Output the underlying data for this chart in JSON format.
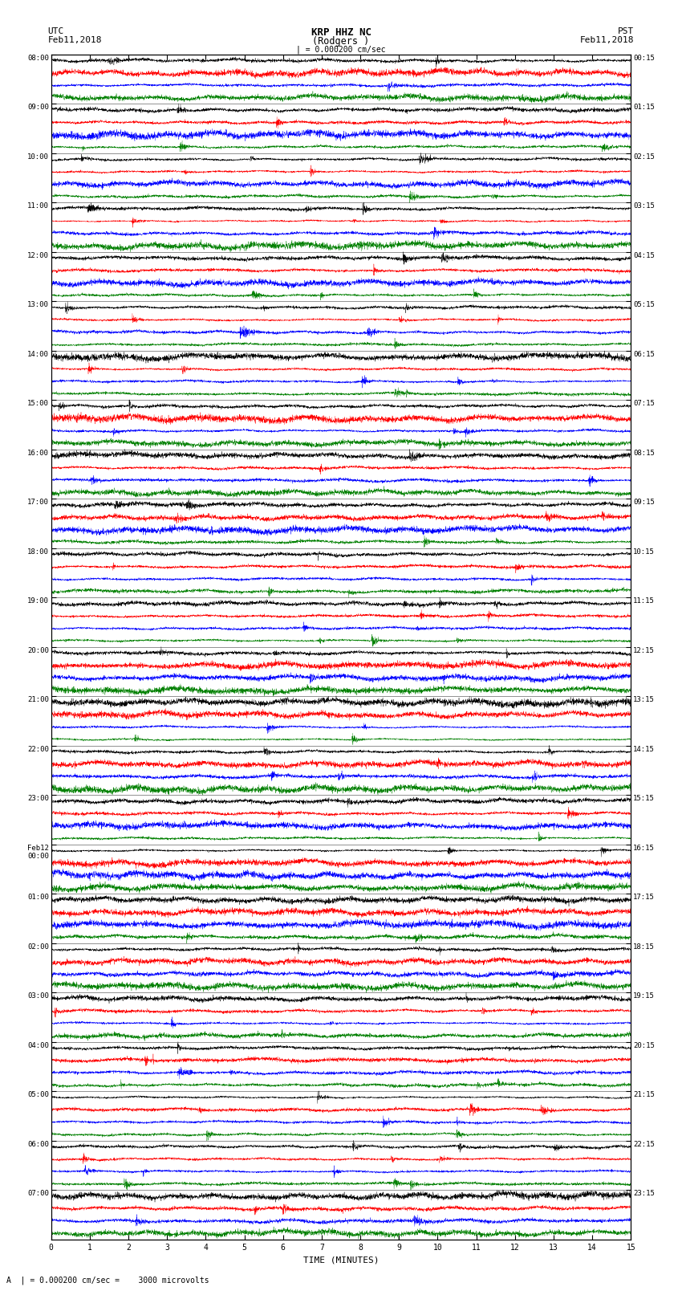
{
  "title_line1": "KRP HHZ NC",
  "title_line2": "(Rodgers )",
  "scale_label": "| = 0.000200 cm/sec",
  "bottom_label": "A  | = 0.000200 cm/sec =    3000 microvolts",
  "xlabel": "TIME (MINUTES)",
  "left_header_line1": "UTC",
  "left_header_line2": "Feb11,2018",
  "right_header_line1": "PST",
  "right_header_line2": "Feb11,2018",
  "left_times": [
    "08:00",
    "09:00",
    "10:00",
    "11:00",
    "12:00",
    "13:00",
    "14:00",
    "15:00",
    "16:00",
    "17:00",
    "18:00",
    "19:00",
    "20:00",
    "21:00",
    "22:00",
    "23:00",
    "Feb12\n00:00",
    "01:00",
    "02:00",
    "03:00",
    "04:00",
    "05:00",
    "06:00",
    "07:00"
  ],
  "right_times": [
    "00:15",
    "01:15",
    "02:15",
    "03:15",
    "04:15",
    "05:15",
    "06:15",
    "07:15",
    "08:15",
    "09:15",
    "10:15",
    "11:15",
    "12:15",
    "13:15",
    "14:15",
    "15:15",
    "16:15",
    "17:15",
    "18:15",
    "19:15",
    "20:15",
    "21:15",
    "22:15",
    "23:15"
  ],
  "n_rows": 24,
  "n_traces_per_row": 4,
  "minutes_per_row": 15,
  "colors": [
    "black",
    "red",
    "blue",
    "green"
  ],
  "fig_width": 8.5,
  "fig_height": 16.13,
  "bg_color": "white",
  "noise_seed": 42
}
